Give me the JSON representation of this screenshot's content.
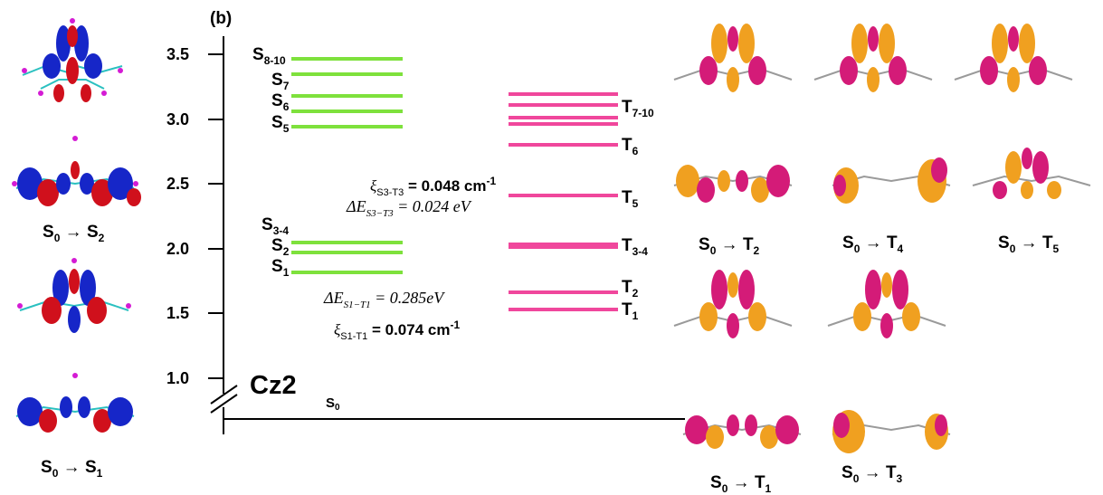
{
  "panel_label": "(b)",
  "molecule": "Cz2",
  "ground_state": "S",
  "ground_state_sub": "0",
  "y_ticks": [
    "3.5",
    "3.0",
    "2.5",
    "2.0",
    "1.5",
    "1.0"
  ],
  "singlets": [
    {
      "name": "S",
      "sub": "8-10",
      "energy": 3.48
    },
    {
      "name": "S",
      "sub": "7",
      "energy": 3.36
    },
    {
      "name": "S",
      "sub": "6",
      "energy": 3.18
    },
    {
      "name": "S",
      "sub": "5",
      "energy": 3.06
    },
    {
      "name": "S",
      "sub": "3-4",
      "energy": 2.95
    },
    {
      "name": "S",
      "sub": "2",
      "energy": 2.05
    },
    {
      "name": "S",
      "sub": "1",
      "energy": 1.97
    }
  ],
  "singlet_labels": [
    {
      "name": "S",
      "sub": "8-10"
    },
    {
      "name": "S",
      "sub": "7"
    },
    {
      "name": "S",
      "sub": "6"
    },
    {
      "name": "S",
      "sub": "5"
    },
    {
      "name": "S",
      "sub": "3-4"
    },
    {
      "name": "S",
      "sub": "2"
    },
    {
      "name": "S",
      "sub": "1"
    }
  ],
  "triplet_labels": [
    {
      "name": "T",
      "sub": "7-10"
    },
    {
      "name": "T",
      "sub": "6"
    },
    {
      "name": "T",
      "sub": "5"
    },
    {
      "name": "T",
      "sub": "3-4"
    },
    {
      "name": "T",
      "sub": "2"
    },
    {
      "name": "T",
      "sub": "1"
    }
  ],
  "annotations": {
    "xi_s3t3": {
      "pre": "ξ",
      "sub": "S3-T3",
      "val": " = 0.048 cm",
      "sup": "-1"
    },
    "de_s3t3": {
      "pre": "ΔE",
      "sub": "S3−T3",
      "val": " = 0.024 eV"
    },
    "de_s1t1": {
      "pre": "ΔE",
      "sub": "S1−T1",
      "val": " = 0.285eV"
    },
    "xi_s1t1": {
      "pre": "ξ",
      "sub": "S1-T1",
      "val": " = 0.074 cm",
      "sup": "-1"
    }
  },
  "transitions_left": [
    {
      "from": "S",
      "fsub": "0",
      "arrow": "→",
      "to": "S",
      "tsub": "2"
    },
    {
      "from": "S",
      "fsub": "0",
      "arrow": "→",
      "to": "S",
      "tsub": "1"
    }
  ],
  "transitions_right": [
    {
      "from": "S",
      "fsub": "0",
      "arrow": "→",
      "to": "T",
      "tsub": "2"
    },
    {
      "from": "S",
      "fsub": "0",
      "arrow": "→",
      "to": "T",
      "tsub": "4"
    },
    {
      "from": "S",
      "fsub": "0",
      "arrow": "→",
      "to": "T",
      "tsub": "5"
    },
    {
      "from": "S",
      "fsub": "0",
      "arrow": "→",
      "to": "T",
      "tsub": "1"
    },
    {
      "from": "S",
      "fsub": "0",
      "arrow": "→",
      "to": "T",
      "tsub": "3"
    }
  ],
  "colors": {
    "singlet": "#7ee13c",
    "triplet": "#f0479c",
    "lobe_red": "#d0101c",
    "lobe_blue": "#1626c8",
    "lobe_orange": "#f0a020",
    "lobe_magenta": "#d41b78"
  }
}
